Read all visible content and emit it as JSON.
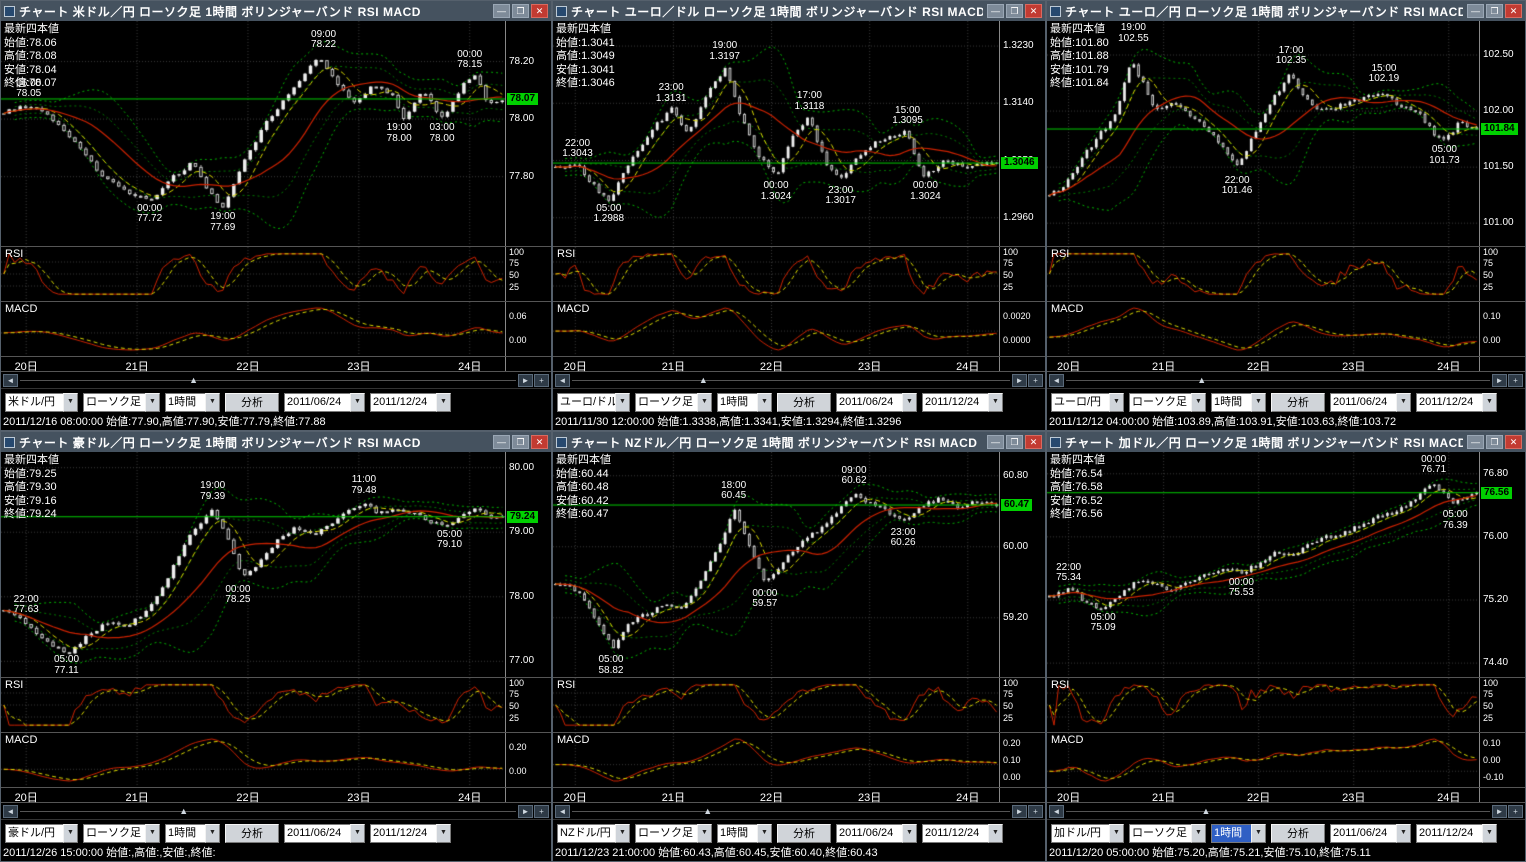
{
  "labels": {
    "quote_header": "最新四本値",
    "open": "始値:",
    "high": "高値:",
    "low": "安値:",
    "close": "終値:",
    "rsi": "RSI",
    "macd": "MACD"
  },
  "window_buttons": {
    "minimize": "—",
    "maximize": "❐",
    "close": "✕"
  },
  "scrollbar": {
    "left": "◄",
    "right": "►",
    "zoom_in": "+",
    "thumb": "▲"
  },
  "dates": [
    "20日",
    "21日",
    "22日",
    "23日",
    "24日"
  ],
  "toolbar_shared": {
    "candle_type": "ローソク足",
    "interval": "1時間",
    "analyze": "分析",
    "date_from": "2011/06/24",
    "date_to": "2011/12/24",
    "dropdown_arrow": "▼"
  },
  "colors": {
    "up_candle": "#eeeeee",
    "bollinger_outer": "#00b000",
    "bollinger_inner": "#007800",
    "ma_fast": "#d8d800",
    "ma_slow": "#cc2200",
    "price_line": "#00cc00",
    "badge_bg": "#00d000",
    "titlebar": "#45525f",
    "close_button": "#c23b32",
    "selection": "#2f5fc4",
    "grid": "#3a3a3a"
  },
  "panels": [
    {
      "title": "チャート 米ドル／円 ローソク足 1時間 ボリンジャーバンド RSI MACD",
      "pair": "米ドル/円",
      "quote": {
        "open": "78.06",
        "high": "78.08",
        "low": "78.04",
        "close": "78.07"
      },
      "current": "78.07",
      "y_ticks": [
        "78.20",
        "78.00",
        "77.80"
      ],
      "y_min": 77.58,
      "y_max": 78.32,
      "rsi_ticks": [
        "100",
        "75",
        "50",
        "25"
      ],
      "macd_ticks": [
        "0.06",
        "0.00"
      ],
      "annotations": [
        {
          "time": "06:00",
          "price": "78.05",
          "x": 0.055,
          "pos": "above"
        },
        {
          "time": "09:00",
          "price": "78.22",
          "x": 0.64,
          "pos": "above"
        },
        {
          "time": "00:00",
          "price": "78.15",
          "x": 0.93,
          "pos": "above"
        },
        {
          "time": "00:00",
          "price": "77.72",
          "x": 0.295,
          "pos": "below"
        },
        {
          "time": "19:00",
          "price": "77.69",
          "x": 0.44,
          "pos": "below"
        },
        {
          "time": "19:00",
          "price": "78.00",
          "x": 0.79,
          "pos": "below"
        },
        {
          "time": "03:00",
          "price": "78.00",
          "x": 0.875,
          "pos": "below"
        }
      ],
      "series": [
        [
          0,
          78.02
        ],
        [
          0.05,
          78.05
        ],
        [
          0.1,
          78.0
        ],
        [
          0.15,
          77.9
        ],
        [
          0.2,
          77.8
        ],
        [
          0.25,
          77.74
        ],
        [
          0.3,
          77.72
        ],
        [
          0.34,
          77.8
        ],
        [
          0.38,
          77.85
        ],
        [
          0.41,
          77.75
        ],
        [
          0.44,
          77.69
        ],
        [
          0.48,
          77.85
        ],
        [
          0.53,
          78.0
        ],
        [
          0.58,
          78.1
        ],
        [
          0.63,
          78.22
        ],
        [
          0.67,
          78.12
        ],
        [
          0.7,
          78.05
        ],
        [
          0.74,
          78.12
        ],
        [
          0.78,
          78.08
        ],
        [
          0.8,
          78.0
        ],
        [
          0.84,
          78.1
        ],
        [
          0.88,
          78.0
        ],
        [
          0.92,
          78.12
        ],
        [
          0.95,
          78.15
        ],
        [
          0.97,
          78.05
        ],
        [
          1,
          78.07
        ]
      ],
      "scroll_pos": 0.35,
      "interval_selected": false,
      "status": "2011/12/16 08:00:00 始値:77.90,高値:77.90,安値:77.79,終値:77.88"
    },
    {
      "title": "チャート ユーロ／ドル ローソク足 1時間 ボリンジャーバンド RSI MACD",
      "pair": "ユーロ/ドル",
      "quote": {
        "open": "1.3041",
        "high": "1.3049",
        "low": "1.3041",
        "close": "1.3046"
      },
      "current": "1.3046",
      "y_ticks": [
        "1.3230",
        "1.3140",
        "1.3050",
        "1.2960"
      ],
      "y_min": 1.2925,
      "y_max": 1.326,
      "rsi_ticks": [
        "100",
        "75",
        "50",
        "25"
      ],
      "macd_ticks": [
        "0.0020",
        "0.0000"
      ],
      "annotations": [
        {
          "time": "22:00",
          "price": "1.3043",
          "x": 0.055,
          "pos": "above"
        },
        {
          "time": "05:00",
          "price": "1.2988",
          "x": 0.125,
          "pos": "below"
        },
        {
          "time": "23:00",
          "price": "1.3131",
          "x": 0.265,
          "pos": "above"
        },
        {
          "time": "19:00",
          "price": "1.3197",
          "x": 0.385,
          "pos": "above"
        },
        {
          "time": "00:00",
          "price": "1.3024",
          "x": 0.5,
          "pos": "below"
        },
        {
          "time": "17:00",
          "price": "1.3118",
          "x": 0.575,
          "pos": "above"
        },
        {
          "time": "23:00",
          "price": "1.3017",
          "x": 0.645,
          "pos": "below"
        },
        {
          "time": "15:00",
          "price": "1.3095",
          "x": 0.795,
          "pos": "above"
        },
        {
          "time": "00:00",
          "price": "1.3024",
          "x": 0.835,
          "pos": "below"
        }
      ],
      "series": [
        [
          0,
          1.304
        ],
        [
          0.05,
          1.3043
        ],
        [
          0.1,
          1.2999
        ],
        [
          0.125,
          1.2988
        ],
        [
          0.17,
          1.305
        ],
        [
          0.22,
          1.31
        ],
        [
          0.265,
          1.3131
        ],
        [
          0.3,
          1.309
        ],
        [
          0.34,
          1.315
        ],
        [
          0.385,
          1.3197
        ],
        [
          0.42,
          1.312
        ],
        [
          0.46,
          1.306
        ],
        [
          0.5,
          1.3024
        ],
        [
          0.54,
          1.309
        ],
        [
          0.575,
          1.3118
        ],
        [
          0.61,
          1.305
        ],
        [
          0.645,
          1.3017
        ],
        [
          0.69,
          1.306
        ],
        [
          0.73,
          1.308
        ],
        [
          0.795,
          1.3095
        ],
        [
          0.835,
          1.3024
        ],
        [
          0.88,
          1.305
        ],
        [
          0.93,
          1.304
        ],
        [
          1,
          1.3046
        ]
      ],
      "scroll_pos": 0.3,
      "interval_selected": false,
      "status": "2011/11/30 12:00:00 始値:1.3338,高値:1.3341,安値:1.3294,終値:1.3296"
    },
    {
      "title": "チャート ユーロ／円 ローソク足 1時間 ボリンジャーバンド RSI MACD",
      "pair": "ユーロ/円",
      "quote": {
        "open": "101.80",
        "high": "101.88",
        "low": "101.79",
        "close": "101.84"
      },
      "current": "101.84",
      "y_ticks": [
        "102.50",
        "102.00",
        "101.50",
        "101.00"
      ],
      "y_min": 100.85,
      "y_max": 102.75,
      "rsi_ticks": [
        "100",
        "75",
        "50",
        "25"
      ],
      "macd_ticks": [
        "0.10",
        "0.00"
      ],
      "annotations": [
        {
          "time": "19:00",
          "price": "102.55",
          "x": 0.2,
          "pos": "above"
        },
        {
          "time": "22:00",
          "price": "101.46",
          "x": 0.44,
          "pos": "below"
        },
        {
          "time": "17:00",
          "price": "102.35",
          "x": 0.565,
          "pos": "above"
        },
        {
          "time": "15:00",
          "price": "102.19",
          "x": 0.78,
          "pos": "above"
        },
        {
          "time": "05:00",
          "price": "101.73",
          "x": 0.92,
          "pos": "below"
        }
      ],
      "series": [
        [
          0,
          101.25
        ],
        [
          0.04,
          101.35
        ],
        [
          0.08,
          101.6
        ],
        [
          0.12,
          101.8
        ],
        [
          0.16,
          102.0
        ],
        [
          0.19,
          102.45
        ],
        [
          0.22,
          102.25
        ],
        [
          0.25,
          102.0
        ],
        [
          0.29,
          102.1
        ],
        [
          0.33,
          101.95
        ],
        [
          0.37,
          101.85
        ],
        [
          0.4,
          101.7
        ],
        [
          0.44,
          101.5
        ],
        [
          0.48,
          101.8
        ],
        [
          0.52,
          102.1
        ],
        [
          0.565,
          102.33
        ],
        [
          0.6,
          102.1
        ],
        [
          0.64,
          102.0
        ],
        [
          0.68,
          102.05
        ],
        [
          0.72,
          102.1
        ],
        [
          0.78,
          102.17
        ],
        [
          0.82,
          102.05
        ],
        [
          0.86,
          102.0
        ],
        [
          0.9,
          101.8
        ],
        [
          0.93,
          101.75
        ],
        [
          0.96,
          101.9
        ],
        [
          1,
          101.84
        ]
      ],
      "scroll_pos": 0.32,
      "interval_selected": false,
      "status": "2011/12/12 04:00:00 始値:103.89,高値:103.91,安値:103.63,終値:103.72"
    },
    {
      "title": "チャート 豪ドル／円 ローソク足 1時間 ボリンジャーバンド RSI MACD",
      "pair": "豪ドル/円",
      "quote": {
        "open": "79.25",
        "high": "79.30",
        "low": "79.16",
        "close": "79.24"
      },
      "current": "79.24",
      "y_ticks": [
        "80.00",
        "79.00",
        "78.00",
        "77.00"
      ],
      "y_min": 76.85,
      "y_max": 80.15,
      "rsi_ticks": [
        "100",
        "75",
        "50",
        "25"
      ],
      "macd_ticks": [
        "0.20",
        "0.00"
      ],
      "annotations": [
        {
          "time": "22:00",
          "price": "77.63",
          "x": 0.05,
          "pos": "above"
        },
        {
          "time": "05:00",
          "price": "77.11",
          "x": 0.13,
          "pos": "below"
        },
        {
          "time": "19:00",
          "price": "79.39",
          "x": 0.42,
          "pos": "above"
        },
        {
          "time": "00:00",
          "price": "78.25",
          "x": 0.47,
          "pos": "below"
        },
        {
          "time": "11:00",
          "price": "79.48",
          "x": 0.72,
          "pos": "above"
        },
        {
          "time": "05:00",
          "price": "79.10",
          "x": 0.89,
          "pos": "below"
        }
      ],
      "series": [
        [
          0,
          77.8
        ],
        [
          0.04,
          77.63
        ],
        [
          0.08,
          77.35
        ],
        [
          0.13,
          77.11
        ],
        [
          0.17,
          77.4
        ],
        [
          0.21,
          77.6
        ],
        [
          0.25,
          77.55
        ],
        [
          0.29,
          77.8
        ],
        [
          0.33,
          78.3
        ],
        [
          0.37,
          78.9
        ],
        [
          0.42,
          79.35
        ],
        [
          0.45,
          78.9
        ],
        [
          0.48,
          78.3
        ],
        [
          0.52,
          78.6
        ],
        [
          0.55,
          78.9
        ],
        [
          0.58,
          79.05
        ],
        [
          0.62,
          78.95
        ],
        [
          0.66,
          79.15
        ],
        [
          0.72,
          79.45
        ],
        [
          0.75,
          79.3
        ],
        [
          0.79,
          79.38
        ],
        [
          0.83,
          79.25
        ],
        [
          0.86,
          79.15
        ],
        [
          0.89,
          79.1
        ],
        [
          0.92,
          79.3
        ],
        [
          0.95,
          79.35
        ],
        [
          0.98,
          79.2
        ],
        [
          1,
          79.24
        ]
      ],
      "scroll_pos": 0.33,
      "interval_selected": false,
      "status": "2011/12/26 15:00:00 始値:,高値:,安値:,終値:"
    },
    {
      "title": "チャート NZドル／円 ローソク足 1時間 ボリンジャーバンド RSI MACD",
      "pair": "NZドル/円",
      "quote": {
        "open": "60.44",
        "high": "60.48",
        "low": "60.42",
        "close": "60.47"
      },
      "current": "60.47",
      "y_ticks": [
        "60.80",
        "60.00",
        "59.20"
      ],
      "y_min": 58.6,
      "y_max": 61.0,
      "rsi_ticks": [
        "100",
        "75",
        "50",
        "25"
      ],
      "macd_ticks": [
        "0.20",
        "0.10",
        "0.00"
      ],
      "annotations": [
        {
          "time": "05:00",
          "price": "58.82",
          "x": 0.13,
          "pos": "below"
        },
        {
          "time": "18:00",
          "price": "60.45",
          "x": 0.405,
          "pos": "above"
        },
        {
          "time": "00:00",
          "price": "59.57",
          "x": 0.475,
          "pos": "below"
        },
        {
          "time": "09:00",
          "price": "60.62",
          "x": 0.675,
          "pos": "above"
        },
        {
          "time": "23:00",
          "price": "60.26",
          "x": 0.785,
          "pos": "below"
        }
      ],
      "series": [
        [
          0,
          59.6
        ],
        [
          0.05,
          59.5
        ],
        [
          0.09,
          59.2
        ],
        [
          0.13,
          58.85
        ],
        [
          0.17,
          59.15
        ],
        [
          0.21,
          59.25
        ],
        [
          0.25,
          59.35
        ],
        [
          0.29,
          59.3
        ],
        [
          0.33,
          59.6
        ],
        [
          0.37,
          60.0
        ],
        [
          0.405,
          60.42
        ],
        [
          0.44,
          60.0
        ],
        [
          0.475,
          59.6
        ],
        [
          0.52,
          59.85
        ],
        [
          0.56,
          60.05
        ],
        [
          0.6,
          60.2
        ],
        [
          0.63,
          60.35
        ],
        [
          0.675,
          60.6
        ],
        [
          0.71,
          60.5
        ],
        [
          0.74,
          60.45
        ],
        [
          0.785,
          60.28
        ],
        [
          0.83,
          60.45
        ],
        [
          0.87,
          60.55
        ],
        [
          0.91,
          60.45
        ],
        [
          0.95,
          60.5
        ],
        [
          1,
          60.47
        ]
      ],
      "scroll_pos": 0.31,
      "interval_selected": false,
      "status": "2011/12/23 21:00:00 始値:60.43,高値:60.45,安値:60.40,終値:60.43"
    },
    {
      "title": "チャート 加ドル／円 ローソク足 1時間 ボリンジャーバンド RSI MACD",
      "pair": "加ドル/円",
      "quote": {
        "open": "76.54",
        "high": "76.58",
        "low": "76.52",
        "close": "76.56"
      },
      "current": "76.56",
      "y_ticks": [
        "76.80",
        "76.00",
        "75.20",
        "74.40"
      ],
      "y_min": 74.3,
      "y_max": 77.0,
      "rsi_ticks": [
        "100",
        "75",
        "50",
        "25"
      ],
      "macd_ticks": [
        "0.10",
        "0.00",
        "-0.10"
      ],
      "annotations": [
        {
          "time": "22:00",
          "price": "75.34",
          "x": 0.05,
          "pos": "above"
        },
        {
          "time": "05:00",
          "price": "75.09",
          "x": 0.13,
          "pos": "below"
        },
        {
          "time": "00:00",
          "price": "75.53",
          "x": 0.45,
          "pos": "below"
        },
        {
          "time": "00:00",
          "price": "76.71",
          "x": 0.895,
          "pos": "above"
        },
        {
          "time": "05:00",
          "price": "76.39",
          "x": 0.945,
          "pos": "below"
        }
      ],
      "series": [
        [
          0,
          75.25
        ],
        [
          0.05,
          75.34
        ],
        [
          0.09,
          75.15
        ],
        [
          0.13,
          75.09
        ],
        [
          0.17,
          75.3
        ],
        [
          0.21,
          75.45
        ],
        [
          0.25,
          75.4
        ],
        [
          0.29,
          75.3
        ],
        [
          0.33,
          75.45
        ],
        [
          0.37,
          75.55
        ],
        [
          0.41,
          75.6
        ],
        [
          0.45,
          75.55
        ],
        [
          0.49,
          75.65
        ],
        [
          0.53,
          75.8
        ],
        [
          0.57,
          75.75
        ],
        [
          0.61,
          75.9
        ],
        [
          0.65,
          76.0
        ],
        [
          0.69,
          76.05
        ],
        [
          0.73,
          76.15
        ],
        [
          0.77,
          76.25
        ],
        [
          0.81,
          76.3
        ],
        [
          0.85,
          76.45
        ],
        [
          0.895,
          76.68
        ],
        [
          0.92,
          76.55
        ],
        [
          0.945,
          76.42
        ],
        [
          0.97,
          76.5
        ],
        [
          1,
          76.56
        ]
      ],
      "scroll_pos": 0.33,
      "interval_selected": true,
      "status": "2011/12/20 05:00:00 始値:75.20,高値:75.21,安値:75.10,終値:75.11"
    }
  ]
}
